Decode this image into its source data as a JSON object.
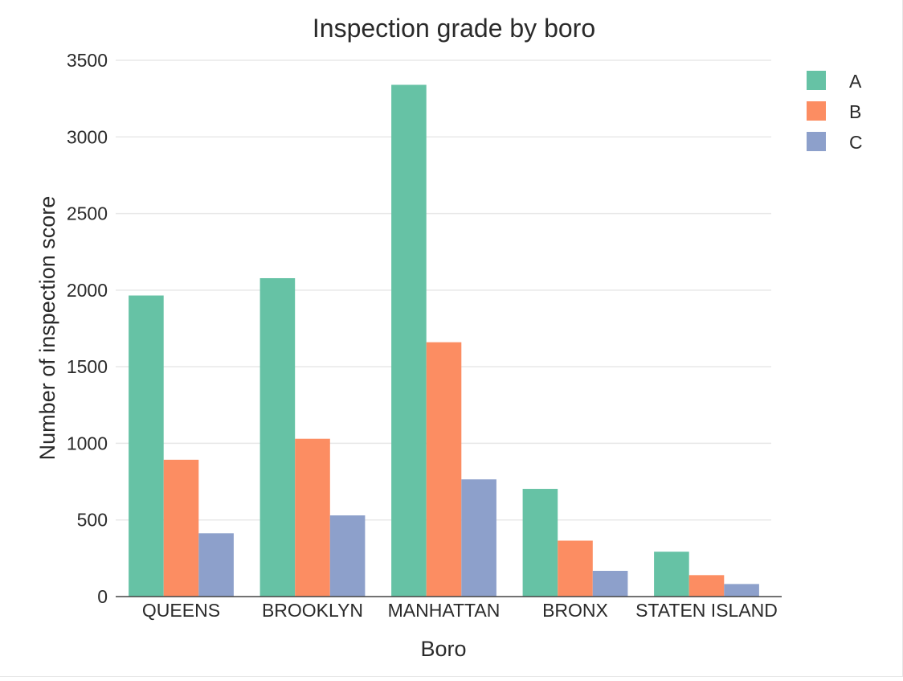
{
  "chart_data": {
    "type": "bar",
    "title": "Inspection grade by boro",
    "xlabel": "Boro",
    "ylabel": "Number of inspection score",
    "categories": [
      "QUEENS",
      "BROOKLYN",
      "MANHATTAN",
      "BRONX",
      "STATEN ISLAND"
    ],
    "series": [
      {
        "name": "A",
        "color": "#66c2a5",
        "values": [
          1965,
          2078,
          3340,
          703,
          293
        ]
      },
      {
        "name": "B",
        "color": "#fc8d62",
        "values": [
          893,
          1030,
          1660,
          365,
          140
        ]
      },
      {
        "name": "C",
        "color": "#8da0cb",
        "values": [
          413,
          530,
          765,
          168,
          82
        ]
      }
    ],
    "ylim": [
      0,
      3500
    ],
    "yticks": [
      0,
      500,
      1000,
      1500,
      2000,
      2500,
      3000,
      3500
    ],
    "grid": true,
    "legend_position": "top-right"
  }
}
